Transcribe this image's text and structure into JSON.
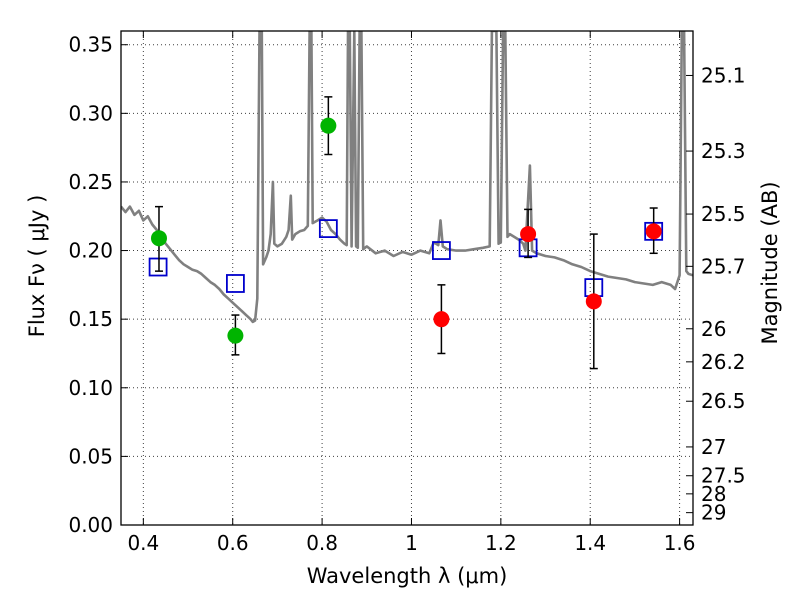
{
  "chart_data": {
    "type": "scatter",
    "xlabel": "Wavelength  λ (μm)",
    "ylabel": "Flux  Fν  ( μJy )",
    "ylabel_right": "Magnitude (AB)",
    "xlim": [
      0.35,
      1.63
    ],
    "ylim": [
      0.0,
      0.36
    ],
    "grid": true,
    "x_ticks": [
      0.4,
      0.6,
      0.8,
      1.0,
      1.2,
      1.4,
      1.6
    ],
    "x_tick_labels": [
      "0.4",
      "0.6",
      "0.8",
      "1",
      "1.2",
      "1.4",
      "1.6"
    ],
    "y_ticks": [
      0.0,
      0.05,
      0.1,
      0.15,
      0.2,
      0.25,
      0.3,
      0.35
    ],
    "y_tick_labels": [
      "0.00",
      "0.05",
      "0.10",
      "0.15",
      "0.20",
      "0.25",
      "0.30",
      "0.35"
    ],
    "right_ticks": [
      {
        "label": "25.1",
        "flux": 0.3276
      },
      {
        "label": "25.3",
        "flux": 0.2725
      },
      {
        "label": "25.5",
        "flux": 0.2266
      },
      {
        "label": "25.7",
        "flux": 0.1885
      },
      {
        "label": "26",
        "flux": 0.143
      },
      {
        "label": "26.2",
        "flux": 0.1189
      },
      {
        "label": "26.5",
        "flux": 0.0902
      },
      {
        "label": "27",
        "flux": 0.0569
      },
      {
        "label": "27.5",
        "flux": 0.0359
      },
      {
        "label": "28",
        "flux": 0.0227
      },
      {
        "label": "29",
        "flux": 0.009
      }
    ],
    "model_spectrum": {
      "color": "#808080",
      "points": [
        [
          0.35,
          0.232
        ],
        [
          0.36,
          0.228
        ],
        [
          0.37,
          0.232
        ],
        [
          0.38,
          0.226
        ],
        [
          0.39,
          0.229
        ],
        [
          0.4,
          0.222
        ],
        [
          0.41,
          0.225
        ],
        [
          0.42,
          0.219
        ],
        [
          0.43,
          0.215
        ],
        [
          0.44,
          0.21
        ],
        [
          0.45,
          0.205
        ],
        [
          0.46,
          0.201
        ],
        [
          0.47,
          0.197
        ],
        [
          0.48,
          0.193
        ],
        [
          0.49,
          0.19
        ],
        [
          0.5,
          0.188
        ],
        [
          0.51,
          0.186
        ],
        [
          0.52,
          0.185
        ],
        [
          0.53,
          0.183
        ],
        [
          0.54,
          0.18
        ],
        [
          0.55,
          0.177
        ],
        [
          0.56,
          0.175
        ],
        [
          0.57,
          0.172
        ],
        [
          0.58,
          0.168
        ],
        [
          0.59,
          0.165
        ],
        [
          0.6,
          0.162
        ],
        [
          0.61,
          0.159
        ],
        [
          0.62,
          0.156
        ],
        [
          0.63,
          0.153
        ],
        [
          0.64,
          0.15
        ],
        [
          0.645,
          0.148
        ],
        [
          0.65,
          0.149
        ],
        [
          0.655,
          0.165
        ],
        [
          0.66,
          0.36
        ],
        [
          0.665,
          0.36
        ],
        [
          0.668,
          0.19
        ],
        [
          0.675,
          0.195
        ],
        [
          0.68,
          0.2
        ],
        [
          0.685,
          0.212
        ],
        [
          0.69,
          0.25
        ],
        [
          0.693,
          0.205
        ],
        [
          0.7,
          0.203
        ],
        [
          0.71,
          0.205
        ],
        [
          0.72,
          0.21
        ],
        [
          0.725,
          0.215
        ],
        [
          0.73,
          0.24
        ],
        [
          0.733,
          0.208
        ],
        [
          0.74,
          0.212
        ],
        [
          0.75,
          0.214
        ],
        [
          0.76,
          0.215
        ],
        [
          0.768,
          0.218
        ],
        [
          0.772,
          0.36
        ],
        [
          0.776,
          0.36
        ],
        [
          0.779,
          0.22
        ],
        [
          0.79,
          0.222
        ],
        [
          0.8,
          0.224
        ],
        [
          0.81,
          0.221
        ],
        [
          0.82,
          0.215
        ],
        [
          0.83,
          0.212
        ],
        [
          0.84,
          0.208
        ],
        [
          0.85,
          0.205
        ],
        [
          0.855,
          0.204
        ],
        [
          0.858,
          0.36
        ],
        [
          0.862,
          0.36
        ],
        [
          0.866,
          0.203
        ],
        [
          0.872,
          0.36
        ],
        [
          0.876,
          0.203
        ],
        [
          0.88,
          0.202
        ],
        [
          0.884,
          0.36
        ],
        [
          0.888,
          0.36
        ],
        [
          0.892,
          0.201
        ],
        [
          0.9,
          0.203
        ],
        [
          0.92,
          0.198
        ],
        [
          0.94,
          0.2
        ],
        [
          0.96,
          0.196
        ],
        [
          0.98,
          0.199
        ],
        [
          1.0,
          0.197
        ],
        [
          1.02,
          0.2
        ],
        [
          1.04,
          0.198
        ],
        [
          1.05,
          0.206
        ],
        [
          1.06,
          0.204
        ],
        [
          1.065,
          0.222
        ],
        [
          1.07,
          0.203
        ],
        [
          1.08,
          0.201
        ],
        [
          1.1,
          0.2
        ],
        [
          1.12,
          0.2
        ],
        [
          1.14,
          0.201
        ],
        [
          1.16,
          0.202
        ],
        [
          1.175,
          0.203
        ],
        [
          1.18,
          0.36
        ],
        [
          1.19,
          0.36
        ],
        [
          1.195,
          0.205
        ],
        [
          1.2,
          0.206
        ],
        [
          1.205,
          0.36
        ],
        [
          1.21,
          0.36
        ],
        [
          1.215,
          0.21
        ],
        [
          1.22,
          0.212
        ],
        [
          1.24,
          0.208
        ],
        [
          1.25,
          0.205
        ],
        [
          1.255,
          0.2
        ],
        [
          1.265,
          0.262
        ],
        [
          1.27,
          0.2
        ],
        [
          1.28,
          0.198
        ],
        [
          1.3,
          0.196
        ],
        [
          1.32,
          0.195
        ],
        [
          1.34,
          0.193
        ],
        [
          1.36,
          0.19
        ],
        [
          1.38,
          0.188
        ],
        [
          1.4,
          0.185
        ],
        [
          1.42,
          0.183
        ],
        [
          1.44,
          0.181
        ],
        [
          1.46,
          0.18
        ],
        [
          1.48,
          0.179
        ],
        [
          1.5,
          0.177
        ],
        [
          1.52,
          0.176
        ],
        [
          1.54,
          0.175
        ],
        [
          1.56,
          0.177
        ],
        [
          1.58,
          0.175
        ],
        [
          1.59,
          0.172
        ],
        [
          1.6,
          0.182
        ],
        [
          1.605,
          0.36
        ],
        [
          1.61,
          0.36
        ],
        [
          1.615,
          0.185
        ],
        [
          1.62,
          0.183
        ],
        [
          1.63,
          0.182
        ]
      ]
    },
    "model_photometry": {
      "color": "#0000cc",
      "points": [
        {
          "x": 0.433,
          "y": 0.188
        },
        {
          "x": 0.606,
          "y": 0.176
        },
        {
          "x": 0.814,
          "y": 0.216
        },
        {
          "x": 1.067,
          "y": 0.2
        },
        {
          "x": 1.261,
          "y": 0.202
        },
        {
          "x": 1.408,
          "y": 0.173
        },
        {
          "x": 1.542,
          "y": 0.214
        }
      ]
    },
    "observed_green": {
      "color": "#00b400",
      "points": [
        {
          "x": 0.435,
          "y": 0.209,
          "err_lo": 0.185,
          "err_hi": 0.232
        },
        {
          "x": 0.606,
          "y": 0.138,
          "err_lo": 0.124,
          "err_hi": 0.153
        },
        {
          "x": 0.814,
          "y": 0.291,
          "err_lo": 0.27,
          "err_hi": 0.312
        }
      ]
    },
    "observed_red": {
      "color": "#ff0000",
      "points": [
        {
          "x": 1.067,
          "y": 0.15,
          "err_lo": 0.125,
          "err_hi": 0.175
        },
        {
          "x": 1.261,
          "y": 0.212,
          "err_lo": 0.195,
          "err_hi": 0.23
        },
        {
          "x": 1.408,
          "y": 0.163,
          "err_lo": 0.114,
          "err_hi": 0.212
        },
        {
          "x": 1.542,
          "y": 0.214,
          "err_lo": 0.198,
          "err_hi": 0.231
        }
      ]
    }
  }
}
